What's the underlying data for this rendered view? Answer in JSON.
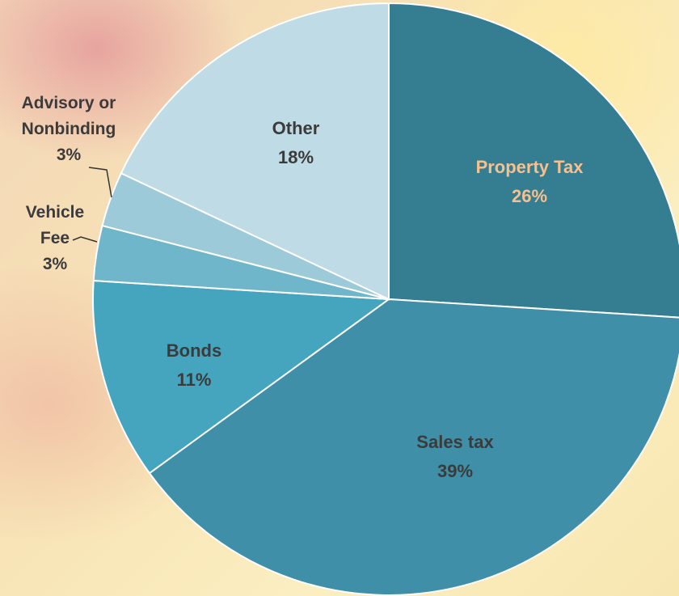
{
  "chart_data": {
    "type": "pie",
    "categories": [
      "Property Tax",
      "Sales tax",
      "Bonds",
      "Vehicle Fee",
      "Advisory or Nonbinding",
      "Other"
    ],
    "values": [
      26,
      39,
      11,
      3,
      3,
      18
    ],
    "value_labels": [
      "26%",
      "39%",
      "11%",
      "3%",
      "3%",
      "18%"
    ],
    "colors": [
      "#357d91",
      "#3f8fa8",
      "#45a5bf",
      "#6fb6cb",
      "#9dcad8",
      "#bfdbe5"
    ]
  }
}
